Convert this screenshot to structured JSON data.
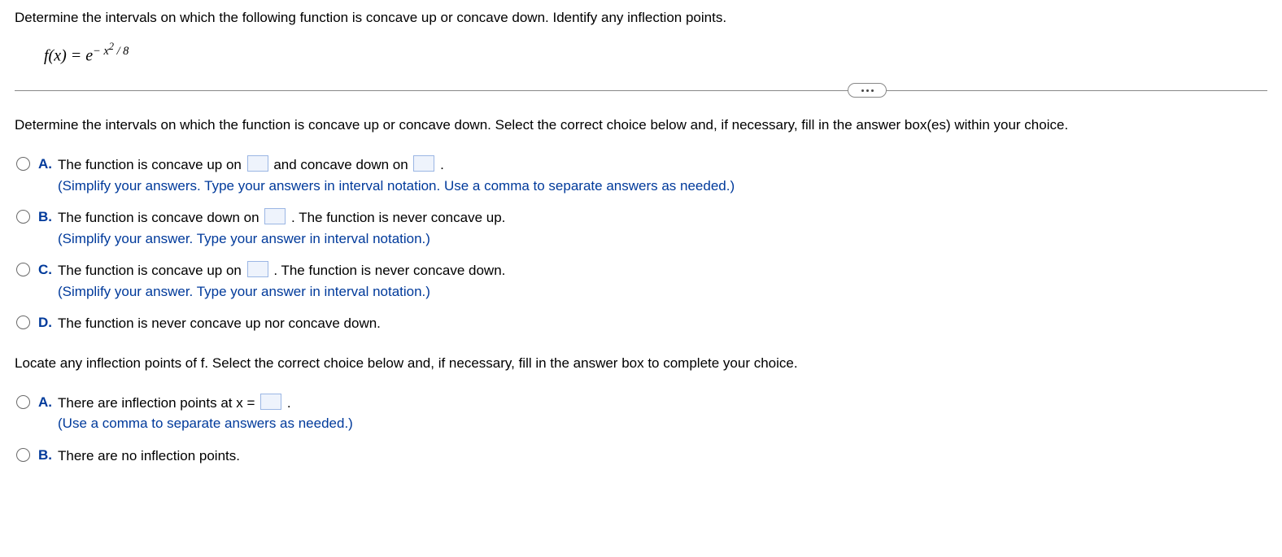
{
  "stem": "Determine the intervals on which the following function is concave up or concave down. Identify any inflection points.",
  "equation": {
    "lhs": "f(x) = ",
    "base": "e",
    "exp_prefix": "− x",
    "exp_power": "2",
    "exp_suffix": " / 8"
  },
  "part1": {
    "prompt": "Determine the intervals on which the function is concave up or concave down. Select the correct choice below and, if necessary, fill in the answer box(es) within your choice.",
    "choices": {
      "A": {
        "letter": "A.",
        "seg1": "The function is concave up on ",
        "seg2": " and concave down on ",
        "seg3": " .",
        "hint": "(Simplify your answers. Type your answers in interval notation. Use a comma to separate answers as needed.)"
      },
      "B": {
        "letter": "B.",
        "seg1": "The function is concave down on ",
        "seg2": " . The function is never concave up.",
        "hint": "(Simplify your answer. Type your answer in interval notation.)"
      },
      "C": {
        "letter": "C.",
        "seg1": "The function is concave up on ",
        "seg2": " . The function is never concave down.",
        "hint": "(Simplify your answer. Type your answer in interval notation.)"
      },
      "D": {
        "letter": "D.",
        "text": "The function is never concave up nor concave down."
      }
    }
  },
  "part2": {
    "prompt": "Locate any inflection points of f. Select the correct choice below and, if necessary, fill in the answer box to complete your choice.",
    "choices": {
      "A": {
        "letter": "A.",
        "seg1": "There are inflection points at x = ",
        "seg2": " .",
        "hint": "(Use a comma to separate answers as needed.)"
      },
      "B": {
        "letter": "B.",
        "text": "There are no inflection points."
      }
    }
  }
}
